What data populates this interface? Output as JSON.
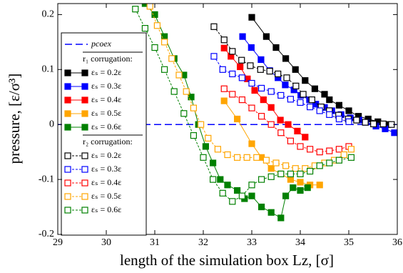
{
  "chart_data": {
    "type": "line",
    "xlabel": "length of the simulation box Lz, [σ]",
    "ylabel": "pressure, [ε/σ³]",
    "xlim": [
      29,
      36
    ],
    "ylim": [
      -0.2,
      0.22
    ],
    "xticks": [
      29,
      30,
      31,
      32,
      33,
      34,
      35,
      36
    ],
    "yticks": [
      -0.2,
      -0.1,
      0,
      0.1,
      0.2
    ],
    "legend": "upper left",
    "legend_headers": [
      "r₁ corrugation:",
      "r₂ corrugation:"
    ],
    "series": [
      {
        "name": "pcoex",
        "color": "#0000ff",
        "line_style": "dashed",
        "marker": "none",
        "x": [
          29,
          36
        ],
        "values": [
          0,
          0
        ]
      },
      {
        "name": "εₛ = 0.2ε",
        "color": "#000000",
        "line_style": "solid",
        "marker": "filled",
        "x": [
          33.0,
          33.3,
          33.5,
          33.7,
          33.9,
          34.1,
          34.3,
          34.5,
          34.6,
          34.8,
          35.0,
          35.2,
          35.4,
          35.6,
          35.8
        ],
        "values": [
          0.195,
          0.16,
          0.14,
          0.12,
          0.1,
          0.08,
          0.065,
          0.055,
          0.045,
          0.035,
          0.025,
          0.015,
          0.01,
          0.005,
          0.0
        ]
      },
      {
        "name": "εₛ = 0.3ε",
        "color": "#0000ff",
        "line_style": "solid",
        "marker": "filled",
        "x": [
          32.81,
          32.99,
          33.19,
          33.37,
          33.54,
          33.69,
          33.87,
          34.01,
          34.19,
          34.32,
          34.5,
          34.65,
          34.84,
          35.03,
          35.21,
          35.35,
          35.56,
          35.75,
          35.94
        ],
        "values": [
          0.16,
          0.14,
          0.118,
          0.098,
          0.085,
          0.072,
          0.063,
          0.053,
          0.045,
          0.037,
          0.031,
          0.025,
          0.018,
          0.012,
          0.008,
          0.004,
          -0.003,
          -0.008,
          -0.015
        ]
      },
      {
        "name": "εₛ = 0.4ε",
        "color": "#ff0000",
        "line_style": "solid",
        "marker": "filled",
        "x": [
          32.43,
          32.57,
          32.76,
          32.91,
          33.06,
          33.24,
          33.4,
          33.59,
          33.75,
          33.94,
          34.1
        ],
        "values": [
          0.139,
          0.124,
          0.105,
          0.083,
          0.062,
          0.045,
          0.031,
          0.008,
          0.0,
          -0.012,
          -0.023
        ]
      },
      {
        "name": "εₛ = 0.5ε",
        "color": "#ffa500",
        "line_style": "solid",
        "marker": "filled",
        "x": [
          32.43,
          32.7,
          33.0,
          33.2,
          33.4,
          33.6,
          33.8,
          34.0,
          34.2,
          34.4
        ],
        "values": [
          0.043,
          0.01,
          -0.035,
          -0.06,
          -0.08,
          -0.09,
          -0.1,
          -0.105,
          -0.11,
          -0.11
        ]
      },
      {
        "name": "εₛ = 0.6ε",
        "color": "#008000",
        "line_style": "solid",
        "marker": "filled",
        "x": [
          30.8,
          31.0,
          31.2,
          31.4,
          31.6,
          31.75,
          31.9,
          32.05,
          32.2,
          32.35,
          32.5,
          32.7,
          32.85,
          33.0,
          33.2,
          33.4,
          33.6,
          33.7,
          33.85,
          34.0,
          34.15
        ],
        "values": [
          0.22,
          0.2,
          0.16,
          0.12,
          0.09,
          0.05,
          0.0,
          -0.04,
          -0.07,
          -0.1,
          -0.11,
          -0.12,
          -0.135,
          -0.13,
          -0.15,
          -0.16,
          -0.17,
          -0.13,
          -0.115,
          -0.12,
          -0.115
        ]
      },
      {
        "name": "εₛ = 0.2ε",
        "color": "#000000",
        "line_style": "dashed",
        "marker": "open",
        "x": [
          32.22,
          32.43,
          32.6,
          32.79,
          32.97,
          33.18,
          33.37,
          33.54,
          33.72,
          33.91,
          34.06,
          34.24,
          34.43,
          34.6,
          34.79,
          34.99,
          35.16,
          35.34,
          35.51,
          35.71,
          35.88
        ],
        "values": [
          0.178,
          0.154,
          0.133,
          0.117,
          0.107,
          0.1,
          0.097,
          0.092,
          0.085,
          0.07,
          0.055,
          0.045,
          0.032,
          0.025,
          0.017,
          0.01,
          0.008,
          0.004,
          0.001,
          0.001,
          0.0
        ]
      },
      {
        "name": "εₛ = 0.3ε",
        "color": "#0000ff",
        "line_style": "dashed",
        "marker": "open",
        "x": [
          32.22,
          32.4,
          32.6,
          32.8,
          33.0,
          33.2,
          33.4,
          33.6,
          33.8,
          34.0,
          34.2,
          34.4,
          34.6,
          34.8,
          35.0
        ],
        "values": [
          0.124,
          0.1,
          0.092,
          0.085,
          0.075,
          0.066,
          0.06,
          0.053,
          0.046,
          0.04,
          0.032,
          0.025,
          0.018,
          0.01,
          0.005
        ]
      },
      {
        "name": "εₛ = 0.4ε",
        "color": "#ff0000",
        "line_style": "dashed",
        "marker": "open",
        "x": [
          32.43,
          32.6,
          32.8,
          33.0,
          33.2,
          33.4,
          33.6,
          33.8,
          34.0,
          34.2,
          34.4,
          34.6,
          34.8,
          35.0
        ],
        "values": [
          0.065,
          0.055,
          0.045,
          0.03,
          0.015,
          0.0,
          -0.015,
          -0.03,
          -0.04,
          -0.045,
          -0.05,
          -0.048,
          -0.045,
          -0.04
        ]
      },
      {
        "name": "εₛ = 0.5ε",
        "color": "#ffa500",
        "line_style": "dashed",
        "marker": "open",
        "x": [
          30.9,
          31.05,
          31.2,
          31.35,
          31.5,
          31.65,
          31.8,
          31.95,
          32.1,
          32.3,
          32.5,
          32.7,
          32.9,
          33.1,
          33.3,
          33.5,
          33.7,
          33.9,
          34.1,
          34.3,
          34.5,
          34.7,
          34.9,
          35.05
        ],
        "values": [
          0.215,
          0.18,
          0.15,
          0.12,
          0.09,
          0.06,
          0.03,
          0.0,
          -0.025,
          -0.045,
          -0.055,
          -0.06,
          -0.06,
          -0.06,
          -0.065,
          -0.07,
          -0.075,
          -0.08,
          -0.08,
          -0.075,
          -0.07,
          -0.065,
          -0.055,
          -0.045
        ]
      },
      {
        "name": "εₛ = 0.6ε",
        "color": "#008000",
        "line_style": "dashed",
        "marker": "open",
        "x": [
          30.6,
          30.8,
          31.0,
          31.2,
          31.4,
          31.6,
          31.8,
          32.0,
          32.2,
          32.4,
          32.6,
          32.8,
          33.0,
          33.2,
          33.4,
          33.6,
          33.8,
          34.0,
          34.2,
          34.4,
          34.6,
          34.8,
          35.05
        ],
        "values": [
          0.21,
          0.175,
          0.14,
          0.1,
          0.06,
          0.02,
          -0.02,
          -0.06,
          -0.1,
          -0.125,
          -0.14,
          -0.13,
          -0.11,
          -0.1,
          -0.095,
          -0.09,
          -0.09,
          -0.09,
          -0.085,
          -0.075,
          -0.07,
          -0.065,
          -0.06
        ]
      }
    ]
  }
}
